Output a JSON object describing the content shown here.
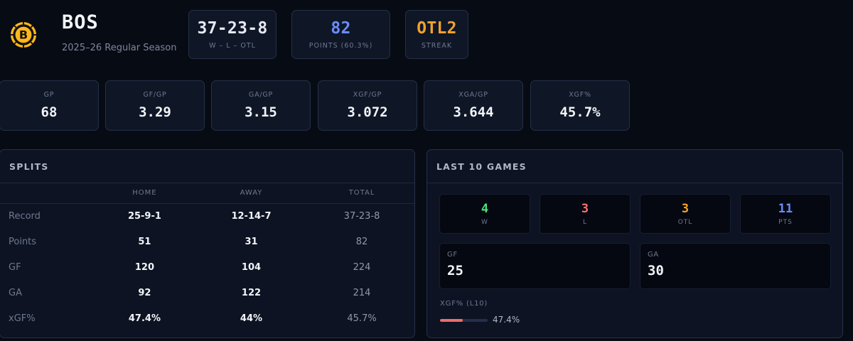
{
  "team": {
    "abbr": "BOS",
    "season": "2025–26 Regular Season",
    "logo_icon": "bruins-spoked-b-logo",
    "logo_letter": "B"
  },
  "header_cards": [
    {
      "value": "37-23-8",
      "label": "W – L – OTL",
      "color": "#e6e9f2"
    },
    {
      "value": "82",
      "label": "POINTS (60.3%)",
      "color": "#6b8cff"
    },
    {
      "value": "OTL2",
      "label": "STREAK",
      "color": "#f2a12e"
    }
  ],
  "stats": [
    {
      "label": "GP",
      "value": "68"
    },
    {
      "label": "GF/GP",
      "value": "3.29"
    },
    {
      "label": "GA/GP",
      "value": "3.15"
    },
    {
      "label": "XGF/GP",
      "value": "3.072"
    },
    {
      "label": "XGA/GP",
      "value": "3.644"
    },
    {
      "label": "XGF%",
      "value": "45.7%"
    }
  ],
  "splits": {
    "title": "SPLITS",
    "columns": [
      "",
      "HOME",
      "AWAY",
      "TOTAL"
    ],
    "rows": [
      {
        "label": "Record",
        "home": "25-9-1",
        "away": "12-14-7",
        "total": "37-23-8"
      },
      {
        "label": "Points",
        "home": "51",
        "away": "31",
        "total": "82"
      },
      {
        "label": "GF",
        "home": "120",
        "away": "104",
        "total": "224"
      },
      {
        "label": "GA",
        "home": "92",
        "away": "122",
        "total": "214"
      },
      {
        "label": "xGF%",
        "home": "47.4%",
        "away": "44%",
        "total": "45.7%"
      }
    ]
  },
  "last10": {
    "title": "LAST 10 GAMES",
    "cards": [
      {
        "value": "4",
        "label": "W",
        "color": "#4ade80"
      },
      {
        "value": "3",
        "label": "L",
        "color": "#f87171"
      },
      {
        "value": "3",
        "label": "OTL",
        "color": "#f5a524"
      },
      {
        "value": "11",
        "label": "PTS",
        "color": "#6b8cff"
      }
    ],
    "gf": {
      "label": "GF",
      "value": "25"
    },
    "ga": {
      "label": "GA",
      "value": "30"
    },
    "xgf": {
      "label": "XGF% (L10)",
      "value": "47.4%",
      "fraction": 0.474
    }
  }
}
